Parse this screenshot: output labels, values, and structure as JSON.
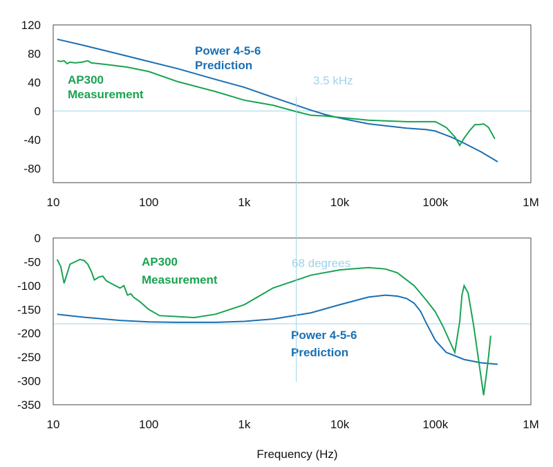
{
  "chart_data": [
    {
      "type": "line",
      "name": "magnitude",
      "x_scale": "log",
      "xlim": [
        10,
        1000000
      ],
      "ylim": [
        -100,
        120
      ],
      "y_ticks": [
        120,
        80,
        40,
        0,
        -40,
        -80
      ],
      "y_tick_labels": [
        "120",
        "80",
        "40",
        "0",
        "-40",
        "-80"
      ],
      "x_ticks": [
        10,
        100,
        1000,
        10000,
        100000,
        1000000
      ],
      "x_tick_labels": [
        "10",
        "100",
        "1k",
        "10k",
        "100k",
        "1M"
      ],
      "reference_line_y": 0,
      "marker_line_x": 3500,
      "marker_label": "3.5 kHz",
      "colors": {
        "prediction": "#1a6fb3",
        "measurement": "#19a351",
        "reference": "#9fd3ea",
        "frame": "#444444"
      },
      "series": [
        {
          "name": "Power 4-5-6 Prediction",
          "label_lines": [
            "Power 4-5-6",
            "Prediction"
          ],
          "color": "#1a6fb3",
          "x": [
            11,
            20,
            50,
            100,
            200,
            500,
            1000,
            2000,
            3500,
            5000,
            7000,
            10000,
            20000,
            50000,
            80000,
            100000,
            150000,
            200000,
            300000,
            450000
          ],
          "y": [
            100,
            92,
            79,
            69,
            59,
            44,
            33,
            19,
            8,
            1,
            -5,
            -10,
            -18,
            -24,
            -26,
            -28,
            -37,
            -45,
            -57,
            -71
          ]
        },
        {
          "name": "AP300 Measurement",
          "label_lines": [
            "AP300",
            "Measurement"
          ],
          "color": "#19a351",
          "x": [
            11,
            12,
            13,
            14,
            15,
            17,
            20,
            23,
            25,
            30,
            40,
            60,
            100,
            200,
            500,
            1000,
            2000,
            3500,
            5000,
            7000,
            10000,
            20000,
            50000,
            100000,
            130000,
            160000,
            180000,
            200000,
            230000,
            260000,
            290000,
            320000,
            360000,
            420000
          ],
          "y": [
            70,
            69,
            70,
            66,
            68,
            67,
            68,
            70,
            67,
            66,
            64,
            61,
            55,
            41,
            27,
            15,
            8,
            -1,
            -6,
            -7,
            -9,
            -13,
            -15,
            -15,
            -23,
            -36,
            -48,
            -38,
            -27,
            -19,
            -19,
            -18,
            -23,
            -39
          ]
        }
      ]
    },
    {
      "type": "line",
      "name": "phase",
      "x_scale": "log",
      "xlim": [
        10,
        1000000
      ],
      "ylim": [
        -350,
        0
      ],
      "y_ticks": [
        0,
        -50,
        -100,
        -150,
        -200,
        -250,
        -300,
        -350
      ],
      "y_tick_labels": [
        "0",
        "-50",
        "-100",
        "-150",
        "-200",
        "-250",
        "-300",
        "-350"
      ],
      "x_ticks": [
        10,
        100,
        1000,
        10000,
        100000,
        1000000
      ],
      "x_tick_labels": [
        "10",
        "100",
        "1k",
        "10k",
        "100k",
        "1M"
      ],
      "xlabel": "Frequency (Hz)",
      "reference_line_y": -180,
      "marker_line_x": 3500,
      "marker_label": "68 degrees",
      "colors": {
        "prediction": "#1a6fb3",
        "measurement": "#19a351",
        "reference": "#9fd3ea",
        "frame": "#444444"
      },
      "series": [
        {
          "name": "Power 4-5-6 Prediction",
          "label_lines": [
            "Power 4-5-6",
            "Prediction"
          ],
          "color": "#1a6fb3",
          "x": [
            11,
            20,
            50,
            100,
            200,
            500,
            1000,
            2000,
            5000,
            10000,
            20000,
            30000,
            40000,
            50000,
            60000,
            70000,
            80000,
            100000,
            130000,
            200000,
            300000,
            450000
          ],
          "y": [
            -160,
            -166,
            -173,
            -176,
            -177,
            -177,
            -175,
            -170,
            -157,
            -140,
            -124,
            -120,
            -122,
            -127,
            -137,
            -154,
            -178,
            -215,
            -240,
            -255,
            -262,
            -265
          ]
        },
        {
          "name": "AP300 Measurement",
          "label_lines": [
            "AP300",
            "Measurement"
          ],
          "color": "#19a351",
          "x": [
            11,
            12,
            13,
            15,
            17,
            19,
            21,
            23,
            25,
            27,
            30,
            33,
            36,
            40,
            50,
            55,
            60,
            65,
            70,
            80,
            100,
            130,
            200,
            300,
            500,
            1000,
            2000,
            5000,
            10000,
            20000,
            30000,
            40000,
            60000,
            80000,
            100000,
            120000,
            140000,
            160000,
            180000,
            190000,
            200000,
            220000,
            250000,
            290000,
            320000,
            340000,
            360000,
            380000
          ],
          "y": [
            -45,
            -60,
            -95,
            -55,
            -50,
            -45,
            -47,
            -55,
            -70,
            -88,
            -82,
            -80,
            -90,
            -95,
            -105,
            -100,
            -120,
            -117,
            -125,
            -133,
            -150,
            -163,
            -165,
            -167,
            -160,
            -140,
            -105,
            -78,
            -67,
            -62,
            -65,
            -73,
            -100,
            -130,
            -155,
            -185,
            -215,
            -240,
            -175,
            -120,
            -100,
            -115,
            -180,
            -270,
            -330,
            -290,
            -250,
            -205
          ]
        }
      ]
    }
  ]
}
